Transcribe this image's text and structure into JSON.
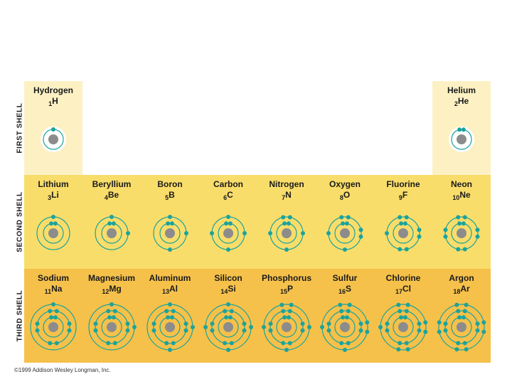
{
  "shell_labels": {
    "first": "FIRST SHELL",
    "second": "SECOND SHELL",
    "third": "THIRD SHELL"
  },
  "elements": [
    {
      "name": "Hydrogen",
      "symbol": "H",
      "atomic_number": 1,
      "electrons": [
        1
      ]
    },
    {
      "name": "Helium",
      "symbol": "He",
      "atomic_number": 2,
      "electrons": [
        2
      ]
    },
    {
      "name": "Lithium",
      "symbol": "Li",
      "atomic_number": 3,
      "electrons": [
        2,
        1
      ]
    },
    {
      "name": "Beryllium",
      "symbol": "Be",
      "atomic_number": 4,
      "electrons": [
        2,
        2
      ]
    },
    {
      "name": "Boron",
      "symbol": "B",
      "atomic_number": 5,
      "electrons": [
        2,
        3
      ]
    },
    {
      "name": "Carbon",
      "symbol": "C",
      "atomic_number": 6,
      "electrons": [
        2,
        4
      ]
    },
    {
      "name": "Nitrogen",
      "symbol": "N",
      "atomic_number": 7,
      "electrons": [
        2,
        5
      ]
    },
    {
      "name": "Oxygen",
      "symbol": "O",
      "atomic_number": 8,
      "electrons": [
        2,
        6
      ]
    },
    {
      "name": "Fluorine",
      "symbol": "F",
      "atomic_number": 9,
      "electrons": [
        2,
        7
      ]
    },
    {
      "name": "Neon",
      "symbol": "Ne",
      "atomic_number": 10,
      "electrons": [
        2,
        8
      ]
    },
    {
      "name": "Sodium",
      "symbol": "Na",
      "atomic_number": 11,
      "electrons": [
        2,
        8,
        1
      ]
    },
    {
      "name": "Magnesium",
      "symbol": "Mg",
      "atomic_number": 12,
      "electrons": [
        2,
        8,
        2
      ]
    },
    {
      "name": "Aluminum",
      "symbol": "Al",
      "atomic_number": 13,
      "electrons": [
        2,
        8,
        3
      ]
    },
    {
      "name": "Silicon",
      "symbol": "Si",
      "atomic_number": 14,
      "electrons": [
        2,
        8,
        4
      ]
    },
    {
      "name": "Phosphorus",
      "symbol": "P",
      "atomic_number": 15,
      "electrons": [
        2,
        8,
        5
      ]
    },
    {
      "name": "Sulfur",
      "symbol": "S",
      "atomic_number": 16,
      "electrons": [
        2,
        8,
        6
      ]
    },
    {
      "name": "Chlorine",
      "symbol": "Cl",
      "atomic_number": 17,
      "electrons": [
        2,
        8,
        7
      ]
    },
    {
      "name": "Argon",
      "symbol": "Ar",
      "atomic_number": 18,
      "electrons": [
        2,
        8,
        8
      ]
    }
  ],
  "copyright": "©1999 Addison Wesley Longman, Inc.",
  "colors": {
    "row1": "#fdf1c4",
    "row2": "#f9dd6a",
    "row3": "#f5c14a",
    "electron": "#1ba39c",
    "nucleus": "#8c8c8c",
    "ring": "#1ba39c"
  }
}
